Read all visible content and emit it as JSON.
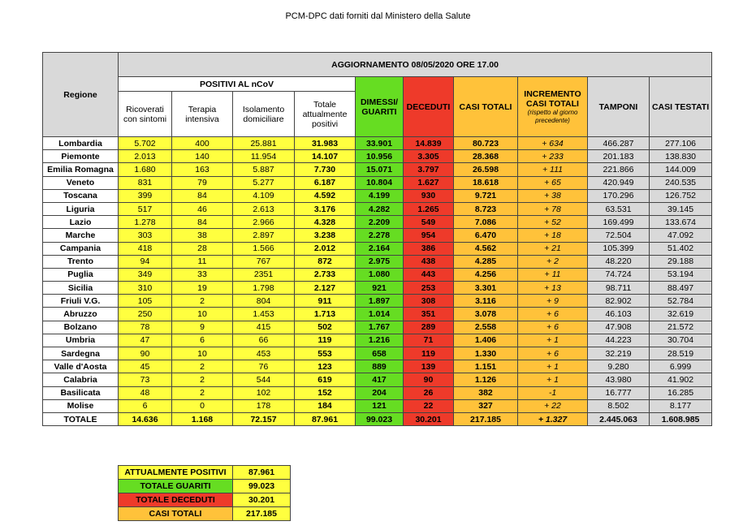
{
  "title": "PCM-DPC dati forniti dal Ministero della Salute",
  "header": {
    "region": "Regione",
    "update": "AGGIORNAMENTO 08/05/2020 ORE 17.00",
    "positivi": "POSITIVI AL nCoV",
    "ricoverati": "Ricoverati con sintomi",
    "terapia": "Terapia intensiva",
    "isolamento": "Isolamento domiciliare",
    "totale_positivi": "Totale attualmente positivi",
    "dimessi": "DIMESSI/ GUARITI",
    "deceduti": "DECEDUTI",
    "casi_totali": "CASI TOTALI",
    "incremento": "INCREMENTO CASI TOTALI",
    "incremento_note": "(rispetto al giorno precedente)",
    "tamponi": "TAMPONI",
    "casi_testati": "CASI TESTATI"
  },
  "rows": [
    {
      "region": "Lombardia",
      "ric": "5.702",
      "ter": "400",
      "iso": "25.881",
      "tot": "31.983",
      "dim": "33.901",
      "dec": "14.839",
      "casi": "80.723",
      "inc": "+ 634",
      "tam": "466.287",
      "test": "277.106"
    },
    {
      "region": "Piemonte",
      "ric": "2.013",
      "ter": "140",
      "iso": "11.954",
      "tot": "14.107",
      "dim": "10.956",
      "dec": "3.305",
      "casi": "28.368",
      "inc": "+ 233",
      "tam": "201.183",
      "test": "138.830"
    },
    {
      "region": "Emilia Romagna",
      "ric": "1.680",
      "ter": "163",
      "iso": "5.887",
      "tot": "7.730",
      "dim": "15.071",
      "dec": "3.797",
      "casi": "26.598",
      "inc": "+ 111",
      "tam": "221.866",
      "test": "144.009"
    },
    {
      "region": "Veneto",
      "ric": "831",
      "ter": "79",
      "iso": "5.277",
      "tot": "6.187",
      "dim": "10.804",
      "dec": "1.627",
      "casi": "18.618",
      "inc": "+ 65",
      "tam": "420.949",
      "test": "240.535"
    },
    {
      "region": "Toscana",
      "ric": "399",
      "ter": "84",
      "iso": "4.109",
      "tot": "4.592",
      "dim": "4.199",
      "dec": "930",
      "casi": "9.721",
      "inc": "+ 38",
      "tam": "170.296",
      "test": "126.752"
    },
    {
      "region": "Liguria",
      "ric": "517",
      "ter": "46",
      "iso": "2.613",
      "tot": "3.176",
      "dim": "4.282",
      "dec": "1.265",
      "casi": "8.723",
      "inc": "+ 78",
      "tam": "63.531",
      "test": "39.145"
    },
    {
      "region": "Lazio",
      "ric": "1.278",
      "ter": "84",
      "iso": "2.966",
      "tot": "4.328",
      "dim": "2.209",
      "dec": "549",
      "casi": "7.086",
      "inc": "+ 52",
      "tam": "169.499",
      "test": "133.674"
    },
    {
      "region": "Marche",
      "ric": "303",
      "ter": "38",
      "iso": "2.897",
      "tot": "3.238",
      "dim": "2.278",
      "dec": "954",
      "casi": "6.470",
      "inc": "+ 18",
      "tam": "72.504",
      "test": "47.092"
    },
    {
      "region": "Campania",
      "ric": "418",
      "ter": "28",
      "iso": "1.566",
      "tot": "2.012",
      "dim": "2.164",
      "dec": "386",
      "casi": "4.562",
      "inc": "+ 21",
      "tam": "105.399",
      "test": "51.402"
    },
    {
      "region": "Trento",
      "ric": "94",
      "ter": "11",
      "iso": "767",
      "tot": "872",
      "dim": "2.975",
      "dec": "438",
      "casi": "4.285",
      "inc": "+ 2",
      "tam": "48.220",
      "test": "29.188"
    },
    {
      "region": "Puglia",
      "ric": "349",
      "ter": "33",
      "iso": "2351",
      "tot": "2.733",
      "dim": "1.080",
      "dec": "443",
      "casi": "4.256",
      "inc": "+ 11",
      "tam": "74.724",
      "test": "53.194"
    },
    {
      "region": "Sicilia",
      "ric": "310",
      "ter": "19",
      "iso": "1.798",
      "tot": "2.127",
      "dim": "921",
      "dec": "253",
      "casi": "3.301",
      "inc": "+ 13",
      "tam": "98.711",
      "test": "88.497"
    },
    {
      "region": "Friuli V.G.",
      "ric": "105",
      "ter": "2",
      "iso": "804",
      "tot": "911",
      "dim": "1.897",
      "dec": "308",
      "casi": "3.116",
      "inc": "+ 9",
      "tam": "82.902",
      "test": "52.784"
    },
    {
      "region": "Abruzzo",
      "ric": "250",
      "ter": "10",
      "iso": "1.453",
      "tot": "1.713",
      "dim": "1.014",
      "dec": "351",
      "casi": "3.078",
      "inc": "+ 6",
      "tam": "46.103",
      "test": "32.619"
    },
    {
      "region": "Bolzano",
      "ric": "78",
      "ter": "9",
      "iso": "415",
      "tot": "502",
      "dim": "1.767",
      "dec": "289",
      "casi": "2.558",
      "inc": "+ 6",
      "tam": "47.908",
      "test": "21.572"
    },
    {
      "region": "Umbria",
      "ric": "47",
      "ter": "6",
      "iso": "66",
      "tot": "119",
      "dim": "1.216",
      "dec": "71",
      "casi": "1.406",
      "inc": "+ 1",
      "tam": "44.223",
      "test": "30.704"
    },
    {
      "region": "Sardegna",
      "ric": "90",
      "ter": "10",
      "iso": "453",
      "tot": "553",
      "dim": "658",
      "dec": "119",
      "casi": "1.330",
      "inc": "+ 6",
      "tam": "32.219",
      "test": "28.519"
    },
    {
      "region": "Valle d'Aosta",
      "ric": "45",
      "ter": "2",
      "iso": "76",
      "tot": "123",
      "dim": "889",
      "dec": "139",
      "casi": "1.151",
      "inc": "+ 1",
      "tam": "9.280",
      "test": "6.999"
    },
    {
      "region": "Calabria",
      "ric": "73",
      "ter": "2",
      "iso": "544",
      "tot": "619",
      "dim": "417",
      "dec": "90",
      "casi": "1.126",
      "inc": "+ 1",
      "tam": "43.980",
      "test": "41.902"
    },
    {
      "region": "Basilicata",
      "ric": "48",
      "ter": "2",
      "iso": "102",
      "tot": "152",
      "dim": "204",
      "dec": "26",
      "casi": "382",
      "inc": "-1",
      "tam": "16.777",
      "test": "16.285"
    },
    {
      "region": "Molise",
      "ric": "6",
      "ter": "0",
      "iso": "178",
      "tot": "184",
      "dim": "121",
      "dec": "22",
      "casi": "327",
      "inc": "+ 22",
      "tam": "8.502",
      "test": "8.177"
    }
  ],
  "total": {
    "region": "TOTALE",
    "ric": "14.636",
    "ter": "1.168",
    "iso": "72.157",
    "tot": "87.961",
    "dim": "99.023",
    "dec": "30.201",
    "casi": "217.185",
    "inc": "+ 1.327",
    "tam": "2.445.063",
    "test": "1.608.985"
  },
  "summary": [
    {
      "label": "ATTUALMENTE POSITIVI",
      "value": "87.961",
      "color": "#ffff3f"
    },
    {
      "label": "TOTALE GUARITI",
      "value": "99.023",
      "color": "#66dd22"
    },
    {
      "label": "TOTALE DECEDUTI",
      "value": "30.201",
      "color": "#ee3a2a"
    },
    {
      "label": "CASI TOTALI",
      "value": "217.185",
      "color": "#ffc23a"
    }
  ]
}
